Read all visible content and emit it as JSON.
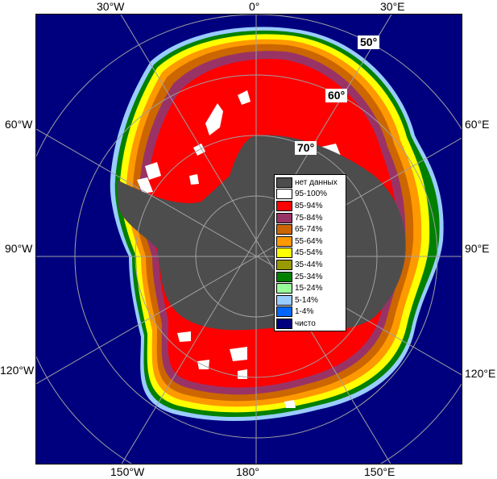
{
  "map": {
    "ocean_color": "#00007f",
    "land_color": "#4d4d4d",
    "grid_color": "#a0a0a0"
  },
  "longitude_labels": {
    "top_30w": "30°W",
    "top_0": "0°",
    "top_30e": "30°E",
    "left_60w": "60°W",
    "left_90w": "90°W",
    "left_120w": "120°W",
    "right_60e": "60°E",
    "right_90e": "90°E",
    "right_120e": "120°E",
    "bottom_150w": "150°W",
    "bottom_180": "180°",
    "bottom_150e": "150°E"
  },
  "latitude_labels": {
    "lat_50": "50°",
    "lat_60": "60°",
    "lat_70": "70°"
  },
  "legend": {
    "items": [
      {
        "label": "нет данных",
        "color": "#4d4d4d"
      },
      {
        "label": "95-100%",
        "color": "#ffffff"
      },
      {
        "label": "85-94%",
        "color": "#ff0000"
      },
      {
        "label": "75-84%",
        "color": "#993366"
      },
      {
        "label": "65-74%",
        "color": "#cc6600"
      },
      {
        "label": "55-64%",
        "color": "#ff9900"
      },
      {
        "label": "45-54%",
        "color": "#ffff00"
      },
      {
        "label": "35-44%",
        "color": "#999900"
      },
      {
        "label": "25-34%",
        "color": "#008000"
      },
      {
        "label": "15-24%",
        "color": "#99ff99"
      },
      {
        "label": "5-14%",
        "color": "#99ccff"
      },
      {
        "label": "1-4%",
        "color": "#0066ff"
      },
      {
        "label": "чисто",
        "color": "#00007f"
      }
    ]
  }
}
